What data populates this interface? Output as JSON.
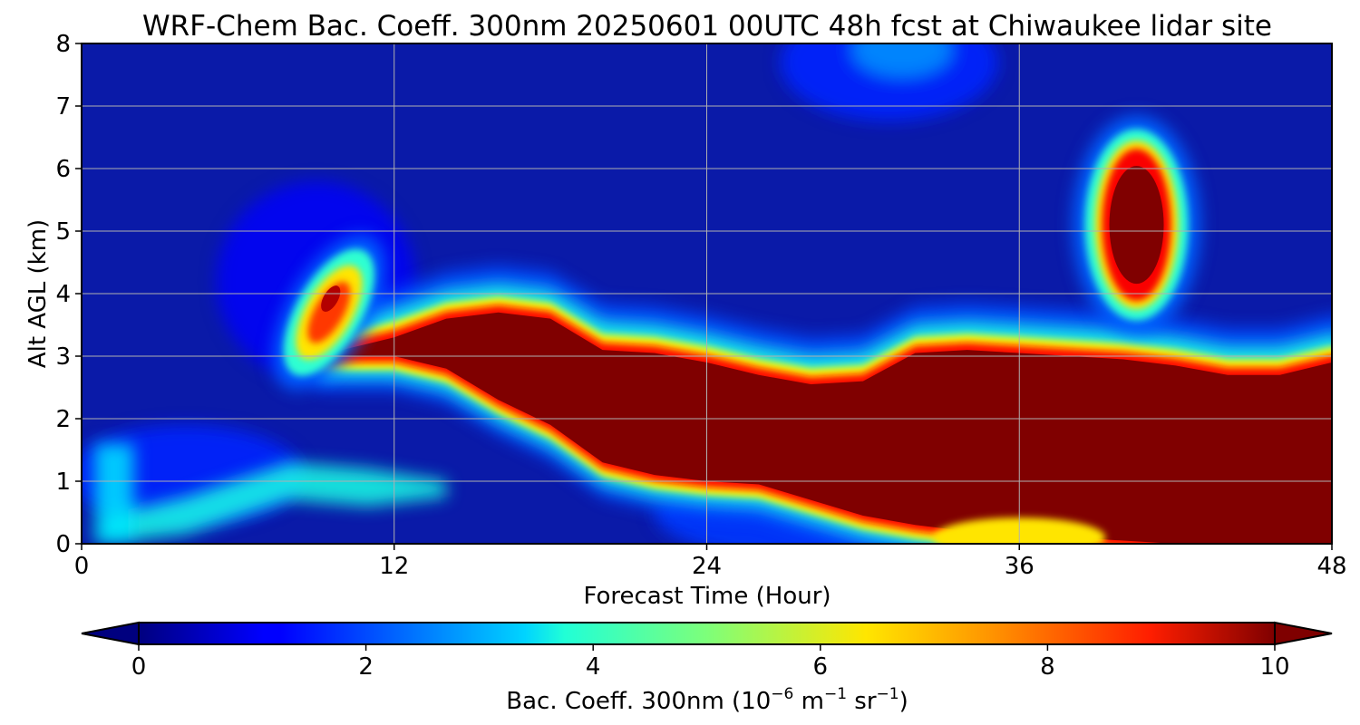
{
  "chart_data": {
    "type": "heatmap",
    "title": "WRF-Chem Bac. Coeff. 300nm  20250601 00UTC 48h fcst at Chiwaukee lidar site",
    "xlabel": "Forecast Time (Hour)",
    "ylabel": "Alt AGL (km)",
    "xlim": [
      0,
      48
    ],
    "ylim": [
      0,
      8
    ],
    "xticks": [
      0,
      12,
      24,
      36,
      48
    ],
    "yticks": [
      0,
      1,
      2,
      3,
      4,
      5,
      6,
      7,
      8
    ],
    "grid": true,
    "colormap": "jet",
    "colorbar": {
      "orientation": "horizontal",
      "label_main": "Bac. Coeff. 300nm  (10",
      "label_exp1": "−6",
      "label_mid": " m",
      "label_exp2": "−1",
      "label_end": " sr",
      "label_exp3": "−1",
      "label_close": ")",
      "min": 0,
      "max": 10,
      "ticks": [
        0,
        2,
        4,
        6,
        8,
        10
      ],
      "extend": "both"
    },
    "features": [
      {
        "type": "plume",
        "hours": [
          9,
          10,
          11,
          12,
          14,
          16,
          18,
          20,
          22,
          24,
          26,
          28,
          30,
          32,
          34,
          36,
          38,
          40,
          42,
          44,
          46,
          48
        ],
        "alt_top_km": [
          3.0,
          3.1,
          3.2,
          3.3,
          3.6,
          3.7,
          3.6,
          3.1,
          3.05,
          2.9,
          2.7,
          2.55,
          2.6,
          3.05,
          3.1,
          3.05,
          3.0,
          2.95,
          2.85,
          2.7,
          2.7,
          2.9
        ],
        "alt_bottom_km": [
          3.0,
          3.0,
          3.0,
          3.0,
          2.8,
          2.3,
          1.9,
          1.3,
          1.1,
          1.0,
          0.95,
          0.7,
          0.45,
          0.3,
          0.2,
          0.15,
          0.1,
          0.05,
          0.0,
          0.0,
          0.0,
          0.0
        ],
        "value": 10
      },
      {
        "type": "blob",
        "hour": 40.5,
        "alt_km": 5.1,
        "value": 10
      },
      {
        "type": "blob",
        "hour": 9.5,
        "alt_km": 3.7,
        "value": 8.5
      },
      {
        "type": "band",
        "hours": [
          1,
          4,
          8,
          11
        ],
        "alt_km": [
          0.2,
          0.5,
          1.05,
          0.95
        ],
        "value": 4
      }
    ]
  }
}
